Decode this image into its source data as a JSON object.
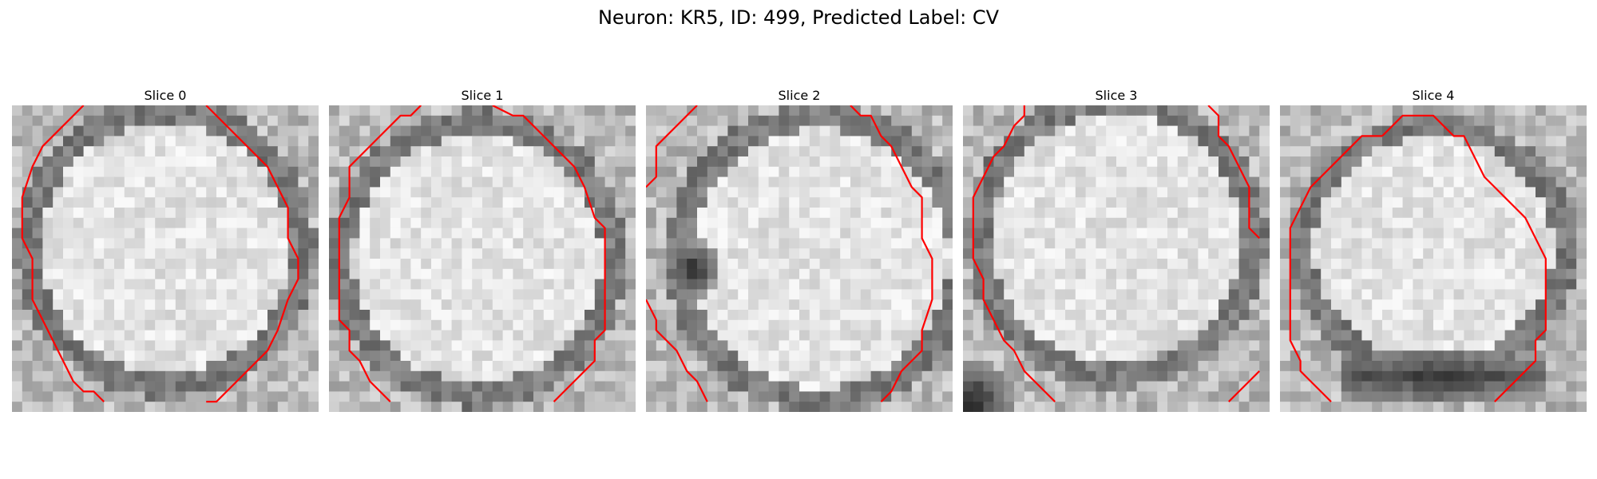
{
  "figure": {
    "title": "Neuron: KR5, ID: 499, Predicted Label: CV"
  },
  "colors": {
    "contour": "#ff0000",
    "colormap": "gray"
  },
  "panels": [
    {
      "title": "Slice 0",
      "dark_regions": []
    },
    {
      "title": "Slice 1",
      "dark_regions": []
    },
    {
      "title": "Slice 2",
      "dark_regions": [
        "left-middle blob"
      ]
    },
    {
      "title": "Slice 3",
      "dark_regions": [
        "bottom-left"
      ]
    },
    {
      "title": "Slice 4",
      "dark_regions": [
        "bottom band"
      ]
    }
  ]
}
